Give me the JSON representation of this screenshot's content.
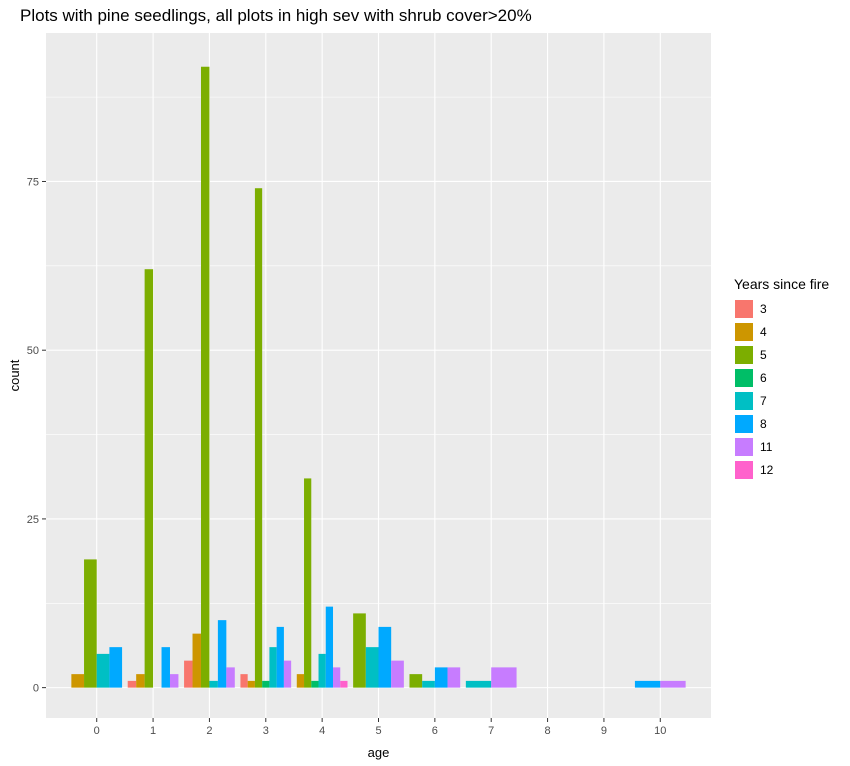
{
  "chart_data": {
    "type": "bar",
    "title": "Plots with pine seedlings, all plots in high sev with shrub cover>20%",
    "xlabel": "age",
    "ylabel": "count",
    "categories": [
      "0",
      "1",
      "2",
      "3",
      "4",
      "5",
      "6",
      "7",
      "8",
      "9",
      "10"
    ],
    "ylim": [
      -4.5,
      97
    ],
    "y_ticks": [
      0,
      25,
      50,
      75
    ],
    "grid": true,
    "legend": {
      "title": "Years since fire",
      "position": "right"
    },
    "series": [
      {
        "name": "3",
        "color": "#F8766D"
      },
      {
        "name": "4",
        "color": "#CD9600"
      },
      {
        "name": "5",
        "color": "#7CAE00"
      },
      {
        "name": "6",
        "color": "#00BE67"
      },
      {
        "name": "7",
        "color": "#00BFC4"
      },
      {
        "name": "8",
        "color": "#00A9FF"
      },
      {
        "name": "11",
        "color": "#C77CFF"
      },
      {
        "name": "12",
        "color": "#FF61CC"
      }
    ],
    "groups": [
      {
        "age": "0",
        "bars": [
          {
            "series": "4",
            "value": 2
          },
          {
            "series": "5",
            "value": 19
          },
          {
            "series": "7",
            "value": 5
          },
          {
            "series": "8",
            "value": 6
          }
        ]
      },
      {
        "age": "1",
        "bars": [
          {
            "series": "3",
            "value": 1
          },
          {
            "series": "4",
            "value": 2
          },
          {
            "series": "5",
            "value": 62
          },
          {
            "series": "7",
            "value": 0
          },
          {
            "series": "8",
            "value": 6
          },
          {
            "series": "11",
            "value": 2
          }
        ]
      },
      {
        "age": "2",
        "bars": [
          {
            "series": "3",
            "value": 4
          },
          {
            "series": "4",
            "value": 8
          },
          {
            "series": "5",
            "value": 92
          },
          {
            "series": "7",
            "value": 1
          },
          {
            "series": "8",
            "value": 10
          },
          {
            "series": "11",
            "value": 3
          }
        ]
      },
      {
        "age": "3",
        "bars": [
          {
            "series": "3",
            "value": 2
          },
          {
            "series": "4",
            "value": 1
          },
          {
            "series": "5",
            "value": 74
          },
          {
            "series": "6",
            "value": 1
          },
          {
            "series": "7",
            "value": 6
          },
          {
            "series": "8",
            "value": 9
          },
          {
            "series": "11",
            "value": 4
          }
        ]
      },
      {
        "age": "4",
        "bars": [
          {
            "series": "4",
            "value": 2
          },
          {
            "series": "5",
            "value": 31
          },
          {
            "series": "6",
            "value": 1
          },
          {
            "series": "7",
            "value": 5
          },
          {
            "series": "8",
            "value": 12
          },
          {
            "series": "11",
            "value": 3
          },
          {
            "series": "12",
            "value": 1
          }
        ]
      },
      {
        "age": "5",
        "bars": [
          {
            "series": "5",
            "value": 11
          },
          {
            "series": "7",
            "value": 6
          },
          {
            "series": "8",
            "value": 9
          },
          {
            "series": "11",
            "value": 4
          }
        ]
      },
      {
        "age": "6",
        "bars": [
          {
            "series": "5",
            "value": 2
          },
          {
            "series": "7",
            "value": 1
          },
          {
            "series": "8",
            "value": 3
          },
          {
            "series": "11",
            "value": 3
          }
        ]
      },
      {
        "age": "7",
        "bars": [
          {
            "series": "7",
            "value": 1
          },
          {
            "series": "11",
            "value": 3
          }
        ]
      },
      {
        "age": "10",
        "bars": [
          {
            "series": "8",
            "value": 1
          },
          {
            "series": "11",
            "value": 1
          }
        ]
      }
    ]
  }
}
